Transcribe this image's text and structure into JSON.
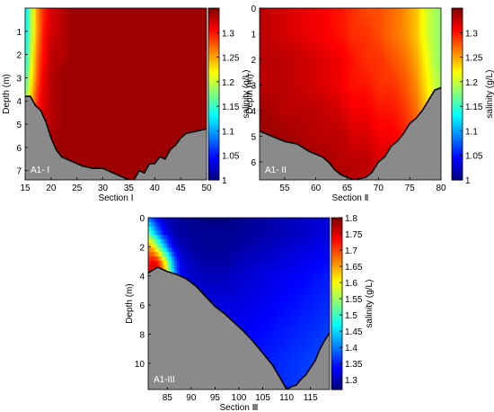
{
  "chart_data": [
    {
      "type": "heatmap",
      "panel_label": "A1- I",
      "xlabel": "Section Ⅰ",
      "ylabel": "Depth (m)",
      "colorbar_label": "salinity (g/L)",
      "xlim": [
        15,
        50
      ],
      "ylim": [
        0,
        7.4
      ],
      "x_ticks": [
        15,
        20,
        25,
        30,
        35,
        40,
        45,
        50
      ],
      "y_ticks": [
        1,
        2,
        3,
        4,
        5,
        6,
        7
      ],
      "clim": [
        1.0,
        1.35
      ],
      "colorbar_ticks": [
        1,
        1.05,
        1.1,
        1.15,
        1.2,
        1.25,
        1.3
      ],
      "bed_profile": [
        [
          15,
          3.8
        ],
        [
          16,
          3.8
        ],
        [
          17,
          4.2
        ],
        [
          18,
          4.4
        ],
        [
          19,
          4.9
        ],
        [
          20,
          5.6
        ],
        [
          21,
          6.1
        ],
        [
          22,
          6.4
        ],
        [
          24,
          6.6
        ],
        [
          26,
          6.8
        ],
        [
          28,
          6.9
        ],
        [
          30,
          6.9
        ],
        [
          32,
          7.1
        ],
        [
          34,
          7.3
        ],
        [
          35,
          7.4
        ],
        [
          36,
          7.4
        ],
        [
          37,
          7.0
        ],
        [
          38,
          7.1
        ],
        [
          39,
          6.7
        ],
        [
          40,
          6.7
        ],
        [
          41,
          6.4
        ],
        [
          42,
          6.5
        ],
        [
          43,
          6.1
        ],
        [
          44,
          5.9
        ],
        [
          45,
          5.6
        ],
        [
          46,
          5.4
        ],
        [
          48,
          5.3
        ],
        [
          50,
          5.2
        ]
      ],
      "field": {
        "x": [
          15,
          16,
          17,
          18,
          19,
          20,
          22,
          24,
          27,
          30,
          35,
          40,
          45,
          50
        ],
        "depth": [
          0,
          1,
          2,
          3,
          4,
          5,
          6,
          7.4
        ],
        "values": [
          [
            1.12,
            1.18,
            1.24,
            1.28,
            1.3,
            1.32,
            1.33,
            1.34,
            1.34,
            1.34,
            1.34,
            1.34,
            1.34,
            1.34
          ],
          [
            1.12,
            1.18,
            1.24,
            1.28,
            1.31,
            1.32,
            1.33,
            1.34,
            1.34,
            1.34,
            1.34,
            1.34,
            1.34,
            1.34
          ],
          [
            1.13,
            1.19,
            1.25,
            1.29,
            1.31,
            1.33,
            1.33,
            1.34,
            1.34,
            1.34,
            1.34,
            1.34,
            1.34,
            1.34
          ],
          [
            1.15,
            1.21,
            1.26,
            1.3,
            1.32,
            1.33,
            1.34,
            1.34,
            1.34,
            1.34,
            1.34,
            1.34,
            1.34,
            1.34
          ],
          [
            1.18,
            1.23,
            1.28,
            1.31,
            1.32,
            1.33,
            1.34,
            1.34,
            1.34,
            1.34,
            1.34,
            1.34,
            1.34,
            1.34
          ],
          [
            1.22,
            1.26,
            1.29,
            1.31,
            1.33,
            1.33,
            1.34,
            1.34,
            1.34,
            1.34,
            1.34,
            1.34,
            1.34,
            1.34
          ],
          [
            1.25,
            1.28,
            1.3,
            1.32,
            1.33,
            1.34,
            1.34,
            1.34,
            1.34,
            1.34,
            1.34,
            1.34,
            1.34,
            1.34
          ],
          [
            1.28,
            1.3,
            1.31,
            1.32,
            1.33,
            1.34,
            1.34,
            1.34,
            1.34,
            1.34,
            1.34,
            1.34,
            1.34,
            1.34
          ]
        ]
      }
    },
    {
      "type": "heatmap",
      "panel_label": "A1- II",
      "xlabel": "Section Ⅱ",
      "ylabel": "Depth (m)",
      "colorbar_label": "salinity (g/L)",
      "xlim": [
        51,
        80
      ],
      "ylim": [
        0,
        6.7
      ],
      "x_ticks": [
        55,
        60,
        65,
        70,
        75,
        80
      ],
      "y_ticks": [
        0,
        1,
        2,
        3,
        4,
        5,
        6
      ],
      "clim": [
        1.0,
        1.35
      ],
      "colorbar_ticks": [
        1,
        1.05,
        1.1,
        1.15,
        1.2,
        1.25,
        1.3
      ],
      "bed_profile": [
        [
          51,
          4.8
        ],
        [
          53,
          5.0
        ],
        [
          55,
          5.2
        ],
        [
          57,
          5.3
        ],
        [
          59,
          5.6
        ],
        [
          61,
          5.8
        ],
        [
          62,
          6.0
        ],
        [
          63,
          6.3
        ],
        [
          64,
          6.5
        ],
        [
          66,
          6.7
        ],
        [
          68,
          6.6
        ],
        [
          69,
          6.4
        ],
        [
          70,
          6.0
        ],
        [
          71,
          5.8
        ],
        [
          72,
          5.4
        ],
        [
          73,
          5.2
        ],
        [
          74,
          4.9
        ],
        [
          75,
          4.5
        ],
        [
          76,
          4.3
        ],
        [
          77,
          4.0
        ],
        [
          78,
          3.6
        ],
        [
          79,
          3.2
        ],
        [
          80,
          3.1
        ]
      ],
      "field": {
        "x": [
          51,
          55,
          60,
          64,
          66,
          68,
          70,
          72,
          74,
          75,
          76,
          77,
          78,
          79,
          80
        ],
        "depth": [
          0,
          1,
          2,
          3,
          4,
          5,
          6,
          6.7
        ],
        "values": [
          [
            1.33,
            1.32,
            1.31,
            1.3,
            1.29,
            1.28,
            1.28,
            1.27,
            1.26,
            1.25,
            1.24,
            1.22,
            1.2,
            1.19,
            1.18
          ],
          [
            1.33,
            1.32,
            1.31,
            1.3,
            1.29,
            1.29,
            1.28,
            1.27,
            1.26,
            1.25,
            1.24,
            1.22,
            1.2,
            1.19,
            1.18
          ],
          [
            1.33,
            1.33,
            1.32,
            1.31,
            1.3,
            1.29,
            1.29,
            1.28,
            1.27,
            1.26,
            1.25,
            1.23,
            1.21,
            1.19,
            1.18
          ],
          [
            1.33,
            1.33,
            1.32,
            1.31,
            1.3,
            1.3,
            1.29,
            1.29,
            1.28,
            1.27,
            1.26,
            1.24,
            1.22,
            1.2,
            1.19
          ],
          [
            1.34,
            1.33,
            1.33,
            1.32,
            1.31,
            1.31,
            1.3,
            1.3,
            1.29,
            1.28,
            1.27,
            1.25,
            1.23,
            1.21,
            1.2
          ],
          [
            1.34,
            1.34,
            1.33,
            1.33,
            1.32,
            1.32,
            1.31,
            1.31,
            1.3,
            1.29,
            1.28,
            1.26,
            1.24,
            1.22,
            1.21
          ],
          [
            1.34,
            1.34,
            1.34,
            1.33,
            1.33,
            1.33,
            1.32,
            1.32,
            1.31,
            1.3,
            1.29,
            1.27,
            1.25,
            1.23,
            1.22
          ],
          [
            1.34,
            1.34,
            1.34,
            1.34,
            1.33,
            1.33,
            1.33,
            1.32,
            1.31,
            1.3,
            1.29,
            1.28,
            1.26,
            1.24,
            1.23
          ]
        ]
      }
    },
    {
      "type": "heatmap",
      "panel_label": "A1-III",
      "xlabel": "Section Ⅲ",
      "ylabel": "Depth (m)",
      "colorbar_label": "salinity (g/L)",
      "xlim": [
        81,
        119
      ],
      "ylim": [
        0,
        11.8
      ],
      "x_ticks": [
        85,
        90,
        95,
        100,
        105,
        110,
        115
      ],
      "y_ticks": [
        0,
        2,
        4,
        6,
        8,
        10
      ],
      "clim": [
        1.27,
        1.8
      ],
      "colorbar_ticks": [
        1.3,
        1.35,
        1.4,
        1.45,
        1.5,
        1.55,
        1.6,
        1.65,
        1.7,
        1.75,
        1.8
      ],
      "bed_profile": [
        [
          81,
          3.8
        ],
        [
          83,
          3.4
        ],
        [
          85,
          3.7
        ],
        [
          87,
          3.9
        ],
        [
          89,
          4.2
        ],
        [
          91,
          4.7
        ],
        [
          93,
          5.4
        ],
        [
          95,
          6.1
        ],
        [
          97,
          6.6
        ],
        [
          99,
          7.2
        ],
        [
          101,
          7.8
        ],
        [
          103,
          8.5
        ],
        [
          105,
          9.3
        ],
        [
          107,
          10.1
        ],
        [
          109,
          11.2
        ],
        [
          110,
          11.8
        ],
        [
          111,
          11.6
        ],
        [
          112,
          11.5
        ],
        [
          113,
          11.1
        ],
        [
          114,
          10.8
        ],
        [
          115,
          10.3
        ],
        [
          116,
          9.8
        ],
        [
          117,
          9.0
        ],
        [
          118,
          8.4
        ],
        [
          119,
          7.9
        ]
      ],
      "field": {
        "x": [
          81,
          82,
          83,
          84,
          85,
          86,
          87,
          88,
          90,
          93,
          97,
          100,
          105,
          110,
          115,
          119
        ],
        "depth": [
          0,
          1,
          2,
          3,
          4,
          6,
          8,
          10,
          11.8
        ],
        "values": [
          [
            1.4,
            1.36,
            1.33,
            1.31,
            1.3,
            1.29,
            1.29,
            1.28,
            1.28,
            1.27,
            1.27,
            1.28,
            1.29,
            1.3,
            1.31,
            1.32
          ],
          [
            1.52,
            1.46,
            1.4,
            1.35,
            1.32,
            1.3,
            1.29,
            1.29,
            1.28,
            1.28,
            1.28,
            1.28,
            1.29,
            1.3,
            1.31,
            1.32
          ],
          [
            1.66,
            1.62,
            1.55,
            1.47,
            1.4,
            1.34,
            1.31,
            1.3,
            1.29,
            1.28,
            1.28,
            1.29,
            1.3,
            1.31,
            1.32,
            1.33
          ],
          [
            1.72,
            1.74,
            1.72,
            1.64,
            1.55,
            1.44,
            1.36,
            1.32,
            1.3,
            1.29,
            1.29,
            1.3,
            1.31,
            1.32,
            1.33,
            1.34
          ],
          [
            1.74,
            1.77,
            1.76,
            1.7,
            1.62,
            1.48,
            1.38,
            1.33,
            1.31,
            1.3,
            1.3,
            1.31,
            1.32,
            1.33,
            1.34,
            1.35
          ],
          [
            1.6,
            1.55,
            1.5,
            1.45,
            1.41,
            1.37,
            1.35,
            1.34,
            1.33,
            1.32,
            1.32,
            1.32,
            1.33,
            1.34,
            1.35,
            1.36
          ],
          [
            1.45,
            1.42,
            1.4,
            1.38,
            1.37,
            1.36,
            1.35,
            1.35,
            1.34,
            1.33,
            1.33,
            1.33,
            1.34,
            1.35,
            1.36,
            1.37
          ],
          [
            1.4,
            1.39,
            1.38,
            1.37,
            1.37,
            1.36,
            1.36,
            1.35,
            1.35,
            1.34,
            1.34,
            1.34,
            1.35,
            1.36,
            1.37,
            1.38
          ],
          [
            1.38,
            1.38,
            1.37,
            1.37,
            1.36,
            1.36,
            1.36,
            1.35,
            1.35,
            1.35,
            1.34,
            1.34,
            1.35,
            1.36,
            1.37,
            1.38
          ]
        ]
      }
    }
  ],
  "colors": {
    "bed_fill": "#8a8a8a",
    "bed_line": "#000000",
    "frame": "#000000",
    "panel_label_text": "#ffffff"
  }
}
